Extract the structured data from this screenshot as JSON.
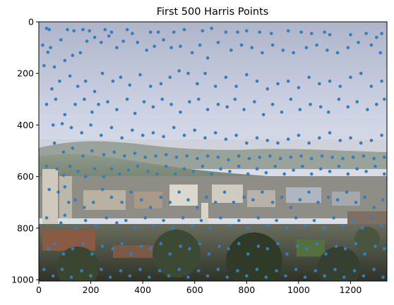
{
  "chart_data": {
    "type": "scatter",
    "title": "First 500 Harris Points",
    "xlabel": "",
    "ylabel": "",
    "xlim": [
      0,
      1340
    ],
    "ylim": [
      1005,
      0
    ],
    "y_inverted": true,
    "x_ticks": [
      "0",
      "200",
      "400",
      "600",
      "800",
      "1000",
      "1200"
    ],
    "y_ticks": [
      "0",
      "200",
      "400",
      "600",
      "800",
      "1000"
    ],
    "x_tick_values": [
      0,
      200,
      400,
      600,
      800,
      1000,
      1200
    ],
    "y_tick_values": [
      0,
      200,
      400,
      600,
      800,
      1000
    ],
    "grid": false,
    "background": "photograph: hillside campus landscape with pale blue sky, bay, buildings and trees",
    "marker_color": "#2f7fc1",
    "point_count": 500,
    "note_sample": "representative subset of the plotted points",
    "points": [
      [
        30,
        25
      ],
      [
        40,
        30
      ],
      [
        15,
        90
      ],
      [
        35,
        118
      ],
      [
        45,
        100
      ],
      [
        20,
        170
      ],
      [
        60,
        175
      ],
      [
        85,
        70
      ],
      [
        110,
        30
      ],
      [
        135,
        35
      ],
      [
        170,
        30
      ],
      [
        195,
        35
      ],
      [
        255,
        30
      ],
      [
        280,
        40
      ],
      [
        340,
        30
      ],
      [
        360,
        45
      ],
      [
        430,
        40
      ],
      [
        460,
        40
      ],
      [
        520,
        40
      ],
      [
        560,
        30
      ],
      [
        630,
        35
      ],
      [
        665,
        25
      ],
      [
        720,
        40
      ],
      [
        765,
        40
      ],
      [
        800,
        35
      ],
      [
        850,
        40
      ],
      [
        895,
        45
      ],
      [
        960,
        35
      ],
      [
        1010,
        40
      ],
      [
        1050,
        45
      ],
      [
        1100,
        40
      ],
      [
        1120,
        50
      ],
      [
        1200,
        50
      ],
      [
        1260,
        45
      ],
      [
        1300,
        60
      ],
      [
        1320,
        45
      ],
      [
        100,
        150
      ],
      [
        130,
        130
      ],
      [
        160,
        120
      ],
      [
        185,
        75
      ],
      [
        215,
        60
      ],
      [
        240,
        80
      ],
      [
        270,
        55
      ],
      [
        300,
        100
      ],
      [
        325,
        75
      ],
      [
        380,
        80
      ],
      [
        415,
        110
      ],
      [
        445,
        95
      ],
      [
        480,
        70
      ],
      [
        510,
        100
      ],
      [
        545,
        95
      ],
      [
        590,
        120
      ],
      [
        620,
        90
      ],
      [
        650,
        140
      ],
      [
        690,
        80
      ],
      [
        740,
        110
      ],
      [
        780,
        90
      ],
      [
        820,
        100
      ],
      [
        860,
        120
      ],
      [
        900,
        90
      ],
      [
        940,
        110
      ],
      [
        980,
        120
      ],
      [
        1030,
        100
      ],
      [
        1070,
        90
      ],
      [
        1110,
        110
      ],
      [
        1150,
        120
      ],
      [
        1190,
        100
      ],
      [
        1230,
        80
      ],
      [
        1280,
        90
      ],
      [
        1315,
        120
      ],
      [
        50,
        260
      ],
      [
        80,
        230
      ],
      [
        120,
        210
      ],
      [
        150,
        250
      ],
      [
        180,
        230
      ],
      [
        215,
        270
      ],
      [
        245,
        200
      ],
      [
        285,
        230
      ],
      [
        315,
        215
      ],
      [
        350,
        245
      ],
      [
        390,
        205
      ],
      [
        430,
        250
      ],
      [
        470,
        240
      ],
      [
        505,
        215
      ],
      [
        540,
        190
      ],
      [
        575,
        200
      ],
      [
        610,
        240
      ],
      [
        640,
        200
      ],
      [
        680,
        250
      ],
      [
        720,
        215
      ],
      [
        760,
        250
      ],
      [
        800,
        205
      ],
      [
        840,
        230
      ],
      [
        880,
        260
      ],
      [
        920,
        240
      ],
      [
        960,
        230
      ],
      [
        1000,
        255
      ],
      [
        1040,
        215
      ],
      [
        1080,
        240
      ],
      [
        1120,
        230
      ],
      [
        1160,
        250
      ],
      [
        1200,
        215
      ],
      [
        1240,
        200
      ],
      [
        1280,
        250
      ],
      [
        1320,
        230
      ],
      [
        30,
        320
      ],
      [
        65,
        300
      ],
      [
        100,
        360
      ],
      [
        140,
        320
      ],
      [
        175,
        300
      ],
      [
        205,
        350
      ],
      [
        230,
        320
      ],
      [
        265,
        310
      ],
      [
        300,
        340
      ],
      [
        340,
        300
      ],
      [
        370,
        355
      ],
      [
        405,
        310
      ],
      [
        440,
        330
      ],
      [
        475,
        300
      ],
      [
        510,
        320
      ],
      [
        545,
        350
      ],
      [
        580,
        310
      ],
      [
        615,
        300
      ],
      [
        650,
        340
      ],
      [
        690,
        320
      ],
      [
        725,
        330
      ],
      [
        755,
        300
      ],
      [
        790,
        340
      ],
      [
        830,
        310
      ],
      [
        865,
        360
      ],
      [
        900,
        320
      ],
      [
        935,
        350
      ],
      [
        970,
        300
      ],
      [
        1005,
        340
      ],
      [
        1045,
        320
      ],
      [
        1085,
        330
      ],
      [
        1115,
        350
      ],
      [
        1155,
        300
      ],
      [
        1190,
        330
      ],
      [
        1225,
        310
      ],
      [
        1265,
        340
      ],
      [
        1300,
        320
      ],
      [
        1330,
        300
      ],
      [
        55,
        400
      ],
      [
        90,
        395
      ],
      [
        125,
        410
      ],
      [
        165,
        430
      ],
      [
        200,
        400
      ],
      [
        240,
        440
      ],
      [
        280,
        410
      ],
      [
        320,
        450
      ],
      [
        360,
        420
      ],
      [
        400,
        440
      ],
      [
        440,
        430
      ],
      [
        480,
        445
      ],
      [
        520,
        410
      ],
      [
        560,
        440
      ],
      [
        600,
        420
      ],
      [
        640,
        450
      ],
      [
        680,
        430
      ],
      [
        720,
        455
      ],
      [
        760,
        440
      ],
      [
        800,
        470
      ],
      [
        840,
        450
      ],
      [
        880,
        460
      ],
      [
        920,
        470
      ],
      [
        960,
        455
      ],
      [
        1000,
        440
      ],
      [
        1040,
        470
      ],
      [
        1080,
        450
      ],
      [
        1120,
        430
      ],
      [
        1160,
        460
      ],
      [
        1200,
        450
      ],
      [
        1240,
        470
      ],
      [
        1280,
        460
      ],
      [
        1320,
        440
      ],
      [
        60,
        470
      ],
      [
        95,
        505
      ],
      [
        130,
        490
      ],
      [
        170,
        520
      ],
      [
        205,
        500
      ],
      [
        250,
        515
      ],
      [
        290,
        505
      ],
      [
        330,
        520
      ],
      [
        370,
        510
      ],
      [
        410,
        525
      ],
      [
        450,
        520
      ],
      [
        490,
        515
      ],
      [
        530,
        525
      ],
      [
        570,
        520
      ],
      [
        610,
        530
      ],
      [
        650,
        520
      ],
      [
        690,
        525
      ],
      [
        730,
        535
      ],
      [
        770,
        520
      ],
      [
        810,
        530
      ],
      [
        850,
        525
      ],
      [
        890,
        520
      ],
      [
        930,
        530
      ],
      [
        970,
        525
      ],
      [
        1010,
        520
      ],
      [
        1050,
        530
      ],
      [
        1090,
        520
      ],
      [
        1130,
        525
      ],
      [
        1170,
        530
      ],
      [
        1210,
        525
      ],
      [
        1250,
        520
      ],
      [
        1290,
        530
      ],
      [
        1330,
        525
      ],
      [
        30,
        560
      ],
      [
        70,
        570
      ],
      [
        95,
        595
      ],
      [
        120,
        560
      ],
      [
        150,
        580
      ],
      [
        180,
        600
      ],
      [
        215,
        570
      ],
      [
        250,
        600
      ],
      [
        280,
        570
      ],
      [
        310,
        590
      ],
      [
        345,
        575
      ],
      [
        380,
        560
      ],
      [
        420,
        580
      ],
      [
        455,
        590
      ],
      [
        490,
        560
      ],
      [
        525,
        590
      ],
      [
        560,
        570
      ],
      [
        595,
        580
      ],
      [
        630,
        560
      ],
      [
        665,
        590
      ],
      [
        700,
        570
      ],
      [
        735,
        580
      ],
      [
        770,
        560
      ],
      [
        805,
        590
      ],
      [
        840,
        570
      ],
      [
        875,
        585
      ],
      [
        910,
        560
      ],
      [
        945,
        590
      ],
      [
        980,
        575
      ],
      [
        1015,
        560
      ],
      [
        1050,
        590
      ],
      [
        1085,
        570
      ],
      [
        1120,
        580
      ],
      [
        1155,
        560
      ],
      [
        1190,
        590
      ],
      [
        1225,
        570
      ],
      [
        1260,
        580
      ],
      [
        1295,
        560
      ],
      [
        1330,
        590
      ],
      [
        40,
        650
      ],
      [
        75,
        660
      ],
      [
        100,
        640
      ],
      [
        115,
        700
      ],
      [
        140,
        690
      ],
      [
        175,
        720
      ],
      [
        210,
        700
      ],
      [
        245,
        650
      ],
      [
        280,
        680
      ],
      [
        320,
        700
      ],
      [
        355,
        660
      ],
      [
        395,
        690
      ],
      [
        430,
        720
      ],
      [
        470,
        680
      ],
      [
        505,
        700
      ],
      [
        540,
        660
      ],
      [
        575,
        690
      ],
      [
        610,
        720
      ],
      [
        645,
        680
      ],
      [
        680,
        700
      ],
      [
        715,
        660
      ],
      [
        750,
        700
      ],
      [
        790,
        680
      ],
      [
        825,
        690
      ],
      [
        860,
        660
      ],
      [
        900,
        700
      ],
      [
        935,
        680
      ],
      [
        970,
        720
      ],
      [
        1005,
        690
      ],
      [
        1040,
        660
      ],
      [
        1075,
        700
      ],
      [
        1115,
        680
      ],
      [
        1150,
        690
      ],
      [
        1185,
        660
      ],
      [
        1220,
        700
      ],
      [
        1255,
        680
      ],
      [
        1290,
        720
      ],
      [
        1325,
        690
      ],
      [
        30,
        760
      ],
      [
        85,
        780
      ],
      [
        100,
        750
      ],
      [
        140,
        800
      ],
      [
        180,
        770
      ],
      [
        220,
        790
      ],
      [
        260,
        760
      ],
      [
        300,
        780
      ],
      [
        335,
        770
      ],
      [
        370,
        800
      ],
      [
        410,
        760
      ],
      [
        440,
        790
      ],
      [
        480,
        770
      ],
      [
        515,
        800
      ],
      [
        555,
        760
      ],
      [
        590,
        790
      ],
      [
        625,
        770
      ],
      [
        660,
        800
      ],
      [
        700,
        760
      ],
      [
        735,
        790
      ],
      [
        770,
        770
      ],
      [
        805,
        800
      ],
      [
        845,
        760
      ],
      [
        880,
        790
      ],
      [
        915,
        770
      ],
      [
        955,
        800
      ],
      [
        990,
        760
      ],
      [
        1025,
        790
      ],
      [
        1060,
        770
      ],
      [
        1100,
        800
      ],
      [
        1135,
        760
      ],
      [
        1170,
        790
      ],
      [
        1210,
        770
      ],
      [
        1245,
        800
      ],
      [
        1280,
        760
      ],
      [
        1320,
        790
      ],
      [
        35,
        880
      ],
      [
        60,
        860
      ],
      [
        95,
        900
      ],
      [
        130,
        880
      ],
      [
        170,
        860
      ],
      [
        205,
        900
      ],
      [
        245,
        870
      ],
      [
        285,
        880
      ],
      [
        320,
        860
      ],
      [
        355,
        900
      ],
      [
        395,
        870
      ],
      [
        430,
        880
      ],
      [
        470,
        860
      ],
      [
        505,
        900
      ],
      [
        545,
        870
      ],
      [
        580,
        880
      ],
      [
        620,
        860
      ],
      [
        655,
        900
      ],
      [
        695,
        870
      ],
      [
        730,
        880
      ],
      [
        770,
        860
      ],
      [
        805,
        900
      ],
      [
        845,
        870
      ],
      [
        880,
        880
      ],
      [
        920,
        860
      ],
      [
        955,
        900
      ],
      [
        995,
        870
      ],
      [
        1030,
        880
      ],
      [
        1070,
        860
      ],
      [
        1105,
        900
      ],
      [
        1145,
        870
      ],
      [
        1180,
        880
      ],
      [
        1220,
        860
      ],
      [
        1255,
        900
      ],
      [
        1295,
        870
      ],
      [
        1330,
        880
      ],
      [
        20,
        960
      ],
      [
        55,
        985
      ],
      [
        90,
        960
      ],
      [
        125,
        990
      ],
      [
        165,
        965
      ],
      [
        200,
        985
      ],
      [
        240,
        960
      ],
      [
        275,
        990
      ],
      [
        315,
        965
      ],
      [
        350,
        985
      ],
      [
        390,
        960
      ],
      [
        425,
        990
      ],
      [
        465,
        965
      ],
      [
        500,
        985
      ],
      [
        540,
        960
      ],
      [
        575,
        990
      ],
      [
        615,
        965
      ],
      [
        650,
        985
      ],
      [
        690,
        960
      ],
      [
        725,
        990
      ],
      [
        765,
        965
      ],
      [
        800,
        985
      ],
      [
        840,
        960
      ],
      [
        875,
        990
      ],
      [
        915,
        965
      ],
      [
        950,
        985
      ],
      [
        990,
        960
      ],
      [
        1025,
        990
      ],
      [
        1065,
        965
      ],
      [
        1100,
        985
      ],
      [
        1140,
        960
      ],
      [
        1175,
        990
      ],
      [
        1215,
        965
      ],
      [
        1250,
        985
      ],
      [
        1290,
        960
      ],
      [
        1325,
        990
      ]
    ]
  }
}
